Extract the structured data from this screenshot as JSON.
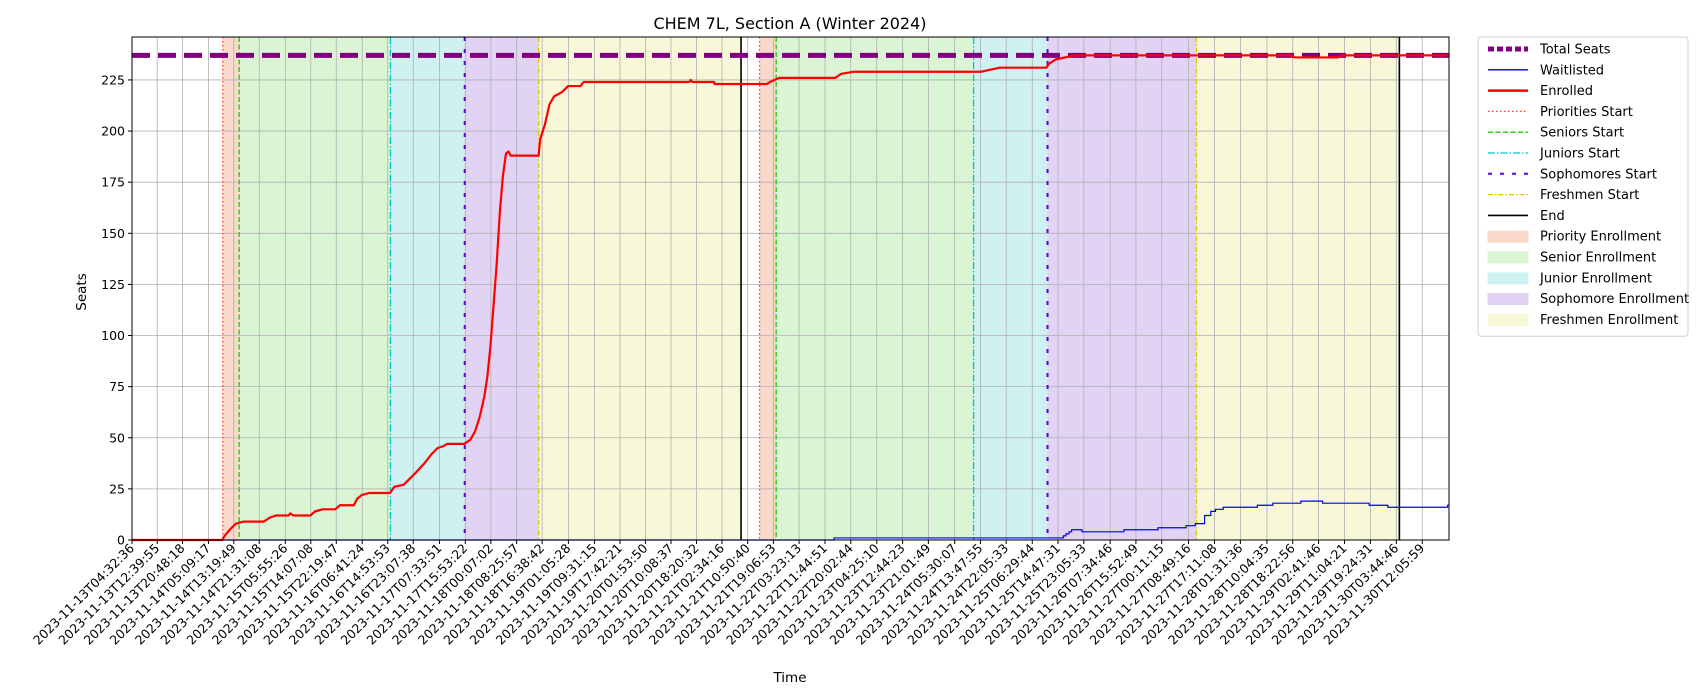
{
  "chart_data": {
    "type": "line",
    "title": "CHEM 7L, Section A (Winter 2024)",
    "xlabel": "Time",
    "ylabel": "Seats",
    "x_range": [
      "2023-11-13T04:32:36",
      "2023-11-30T20:43:00"
    ],
    "ylim": [
      0,
      246
    ],
    "y_ticks": [
      0,
      25,
      50,
      75,
      100,
      125,
      150,
      175,
      200,
      225
    ],
    "x_tick_labels": [
      "2023-11-13T04:32:36",
      "2023-11-13T12:39:55",
      "2023-11-13T20:48:18",
      "2023-11-14T05:09:17",
      "2023-11-14T13:19:49",
      "2023-11-14T21:31:08",
      "2023-11-15T05:55:26",
      "2023-11-15T14:07:08",
      "2023-11-15T22:19:47",
      "2023-11-16T06:41:24",
      "2023-11-16T14:53:53",
      "2023-11-16T23:07:38",
      "2023-11-17T07:33:51",
      "2023-11-17T15:53:22",
      "2023-11-18T00:07:02",
      "2023-11-18T08:25:57",
      "2023-11-18T16:38:42",
      "2023-11-19T01:05:28",
      "2023-11-19T09:31:15",
      "2023-11-19T17:42:21",
      "2023-11-20T01:53:50",
      "2023-11-20T10:08:37",
      "2023-11-20T18:20:32",
      "2023-11-21T02:34:16",
      "2023-11-21T10:50:40",
      "2023-11-21T19:06:53",
      "2023-11-22T03:23:13",
      "2023-11-22T11:44:51",
      "2023-11-22T20:02:44",
      "2023-11-23T04:25:10",
      "2023-11-23T12:44:23",
      "2023-11-23T21:01:49",
      "2023-11-24T05:30:07",
      "2023-11-24T13:47:55",
      "2023-11-24T22:05:33",
      "2023-11-25T06:29:44",
      "2023-11-25T14:47:31",
      "2023-11-25T23:05:33",
      "2023-11-26T07:34:46",
      "2023-11-26T15:52:49",
      "2023-11-27T00:11:15",
      "2023-11-27T08:49:16",
      "2023-11-27T17:11:08",
      "2023-11-28T01:31:36",
      "2023-11-28T10:04:35",
      "2023-11-28T18:22:56",
      "2023-11-29T02:41:46",
      "2023-11-29T11:04:21",
      "2023-11-29T19:24:31",
      "2023-11-30T03:44:46",
      "2023-11-30T12:05:59"
    ],
    "phases": [
      {
        "type": "Priority",
        "start": "2023-11-14T09:46:00",
        "end": "2023-11-14T15:04:00"
      },
      {
        "type": "Senior",
        "start": "2023-11-14T15:04:00",
        "end": "2023-11-16T15:46:00"
      },
      {
        "type": "Junior",
        "start": "2023-11-16T15:46:00",
        "end": "2023-11-17T15:42:00"
      },
      {
        "type": "Sophomore",
        "start": "2023-11-17T15:42:00",
        "end": "2023-11-18T15:32:00"
      },
      {
        "type": "Freshmen",
        "start": "2023-11-18T15:32:00",
        "end": "2023-11-21T08:42:00"
      },
      {
        "type": "Priority",
        "start": "2023-11-21T14:40:00",
        "end": "2023-11-21T20:01:00"
      },
      {
        "type": "Senior",
        "start": "2023-11-21T20:01:00",
        "end": "2023-11-24T11:36:00"
      },
      {
        "type": "Junior",
        "start": "2023-11-24T11:36:00",
        "end": "2023-11-25T11:25:00"
      },
      {
        "type": "Sophomore",
        "start": "2023-11-25T11:25:00",
        "end": "2023-11-27T11:23:00"
      },
      {
        "type": "Freshmen",
        "start": "2023-11-27T11:23:00",
        "end": "2023-11-30T04:44:00"
      }
    ],
    "end_markers": [
      "2023-11-21T08:42:00",
      "2023-11-30T04:44:00"
    ],
    "series": [
      {
        "name": "Total Seats",
        "style": "dashed-thick",
        "color": "#800080",
        "points": [
          [
            "2023-11-13T04:32:36",
            237
          ],
          [
            "2023-11-30T20:43:00",
            237
          ]
        ]
      },
      {
        "name": "Waitlisted",
        "style": "step",
        "color": "#0000ff",
        "points": [
          [
            "2023-11-13T04:32:36",
            0
          ],
          [
            "2023-11-22T14:30:00",
            0
          ],
          [
            "2023-11-22T14:40:00",
            1
          ],
          [
            "2023-11-25T14:00:00",
            1
          ],
          [
            "2023-11-25T16:30:00",
            2
          ],
          [
            "2023-11-25T17:20:00",
            3
          ],
          [
            "2023-11-25T18:20:00",
            4
          ],
          [
            "2023-11-25T19:10:00",
            5
          ],
          [
            "2023-11-25T22:30:00",
            4
          ],
          [
            "2023-11-26T12:00:00",
            5
          ],
          [
            "2023-11-26T23:00:00",
            6
          ],
          [
            "2023-11-27T08:00:00",
            7
          ],
          [
            "2023-11-27T11:00:00",
            8
          ],
          [
            "2023-11-27T14:00:00",
            12
          ],
          [
            "2023-11-27T16:00:00",
            14
          ],
          [
            "2023-11-27T17:30:00",
            15
          ],
          [
            "2023-11-27T20:00:00",
            16
          ],
          [
            "2023-11-28T07:00:00",
            17
          ],
          [
            "2023-11-28T12:00:00",
            18
          ],
          [
            "2023-11-28T21:00:00",
            19
          ],
          [
            "2023-11-29T04:00:00",
            18
          ],
          [
            "2023-11-29T19:00:00",
            17
          ],
          [
            "2023-11-30T01:00:00",
            16
          ],
          [
            "2023-11-30T20:00:00",
            16
          ],
          [
            "2023-11-30T20:15:00",
            17
          ],
          [
            "2023-11-30T20:43:00",
            17
          ]
        ]
      },
      {
        "name": "Enrolled",
        "style": "solid-thick",
        "color": "#ff0000",
        "points": [
          [
            "2023-11-13T04:32:36",
            0
          ],
          [
            "2023-11-14T09:40:00",
            0
          ],
          [
            "2023-11-14T10:20:00",
            2
          ],
          [
            "2023-11-14T12:00:00",
            5
          ],
          [
            "2023-11-14T14:00:00",
            8
          ],
          [
            "2023-11-14T16:30:00",
            9
          ],
          [
            "2023-11-14T23:00:00",
            9
          ],
          [
            "2023-11-15T01:00:00",
            11
          ],
          [
            "2023-11-15T03:00:00",
            12
          ],
          [
            "2023-11-15T07:00:00",
            12
          ],
          [
            "2023-11-15T07:30:00",
            13
          ],
          [
            "2023-11-15T08:30:00",
            12
          ],
          [
            "2023-11-15T14:00:00",
            12
          ],
          [
            "2023-11-15T15:30:00",
            14
          ],
          [
            "2023-11-15T18:00:00",
            15
          ],
          [
            "2023-11-15T22:00:00",
            15
          ],
          [
            "2023-11-15T23:30:00",
            17
          ],
          [
            "2023-11-16T04:00:00",
            17
          ],
          [
            "2023-11-16T05:00:00",
            20
          ],
          [
            "2023-11-16T06:30:00",
            22
          ],
          [
            "2023-11-16T09:00:00",
            23
          ],
          [
            "2023-11-16T15:40:00",
            23
          ],
          [
            "2023-11-16T17:00:00",
            26
          ],
          [
            "2023-11-16T20:00:00",
            27
          ],
          [
            "2023-11-16T22:00:00",
            30
          ],
          [
            "2023-11-17T00:00:00",
            33
          ],
          [
            "2023-11-17T03:00:00",
            38
          ],
          [
            "2023-11-17T05:00:00",
            42
          ],
          [
            "2023-11-17T07:00:00",
            45
          ],
          [
            "2023-11-17T09:00:00",
            46
          ],
          [
            "2023-11-17T10:00:00",
            47
          ],
          [
            "2023-11-17T15:30:00",
            47
          ],
          [
            "2023-11-17T17:30:00",
            49
          ],
          [
            "2023-11-17T19:00:00",
            53
          ],
          [
            "2023-11-17T20:30:00",
            60
          ],
          [
            "2023-11-17T22:00:00",
            70
          ],
          [
            "2023-11-17T23:00:00",
            80
          ],
          [
            "2023-11-18T00:00:00",
            95
          ],
          [
            "2023-11-18T01:00:00",
            115
          ],
          [
            "2023-11-18T02:00:00",
            135
          ],
          [
            "2023-11-18T03:00:00",
            160
          ],
          [
            "2023-11-18T04:00:00",
            178
          ],
          [
            "2023-11-18T05:00:00",
            189
          ],
          [
            "2023-11-18T05:50:00",
            190
          ],
          [
            "2023-11-18T06:30:00",
            188
          ],
          [
            "2023-11-18T15:30:00",
            188
          ],
          [
            "2023-11-18T16:00:00",
            196
          ],
          [
            "2023-11-18T17:30:00",
            203
          ],
          [
            "2023-11-18T19:00:00",
            213
          ],
          [
            "2023-11-18T20:30:00",
            217
          ],
          [
            "2023-11-18T23:00:00",
            219
          ],
          [
            "2023-11-19T01:00:00",
            222
          ],
          [
            "2023-11-19T05:00:00",
            222
          ],
          [
            "2023-11-19T06:00:00",
            224
          ],
          [
            "2023-11-20T16:00:00",
            224
          ],
          [
            "2023-11-20T16:30:00",
            225
          ],
          [
            "2023-11-20T17:00:00",
            224
          ],
          [
            "2023-11-21T00:00:00",
            224
          ],
          [
            "2023-11-21T00:10:00",
            223
          ],
          [
            "2023-11-21T17:00:00",
            223
          ],
          [
            "2023-11-21T18:00:00",
            224
          ],
          [
            "2023-11-21T21:00:00",
            226
          ],
          [
            "2023-11-22T15:00:00",
            226
          ],
          [
            "2023-11-22T17:00:00",
            228
          ],
          [
            "2023-11-22T21:00:00",
            229
          ],
          [
            "2023-11-24T14:00:00",
            229
          ],
          [
            "2023-11-24T17:00:00",
            230
          ],
          [
            "2023-11-24T20:00:00",
            231
          ],
          [
            "2023-11-25T11:00:00",
            231
          ],
          [
            "2023-11-25T12:00:00",
            233
          ],
          [
            "2023-11-25T14:00:00",
            235
          ],
          [
            "2023-11-25T17:00:00",
            236
          ],
          [
            "2023-11-25T20:00:00",
            237
          ],
          [
            "2023-11-28T18:00:00",
            237
          ],
          [
            "2023-11-28T19:00:00",
            236
          ],
          [
            "2023-11-29T09:00:00",
            236
          ],
          [
            "2023-11-29T10:00:00",
            237
          ],
          [
            "2023-11-30T20:43:00",
            237
          ]
        ]
      }
    ],
    "legend": {
      "placement": "outside-right",
      "entries": [
        {
          "label": "Total Seats",
          "kind": "line",
          "color": "#800080",
          "dash": "6,3",
          "width": 5
        },
        {
          "label": "Waitlisted",
          "kind": "line",
          "color": "#0000ff",
          "dash": "",
          "width": 1.3
        },
        {
          "label": "Enrolled",
          "kind": "line",
          "color": "#ff0000",
          "dash": "",
          "width": 2.5
        },
        {
          "label": "Priorities Start",
          "kind": "line",
          "color": "#ff3b3b",
          "dash": "1.5,2.5",
          "width": 1.3
        },
        {
          "label": "Seniors Start",
          "kind": "line",
          "color": "#22cc00",
          "dash": "5,2.5",
          "width": 1.3
        },
        {
          "label": "Juniors Start",
          "kind": "line",
          "color": "#00c4c4",
          "dash": "7,2,1.5,2",
          "width": 1.3
        },
        {
          "label": "Sophomores Start",
          "kind": "line",
          "color": "#5a00d6",
          "dash": "4,8",
          "width": 2
        },
        {
          "label": "Freshmen Start",
          "kind": "line",
          "color": "#d8c800",
          "dash": "5,2,1.5,2",
          "width": 1.3
        },
        {
          "label": "End",
          "kind": "line",
          "color": "#000000",
          "dash": "",
          "width": 1.6
        },
        {
          "label": "Priority Enrollment",
          "kind": "patch",
          "color": "#f8d9cc"
        },
        {
          "label": "Senior Enrollment",
          "kind": "patch",
          "color": "#d9f5d3"
        },
        {
          "label": "Junior Enrollment",
          "kind": "patch",
          "color": "#cff1f2"
        },
        {
          "label": "Sophomore Enrollment",
          "kind": "patch",
          "color": "#e1d3f4"
        },
        {
          "label": "Freshmen Enrollment",
          "kind": "patch",
          "color": "#f8f8d8"
        }
      ]
    },
    "grid": true
  }
}
